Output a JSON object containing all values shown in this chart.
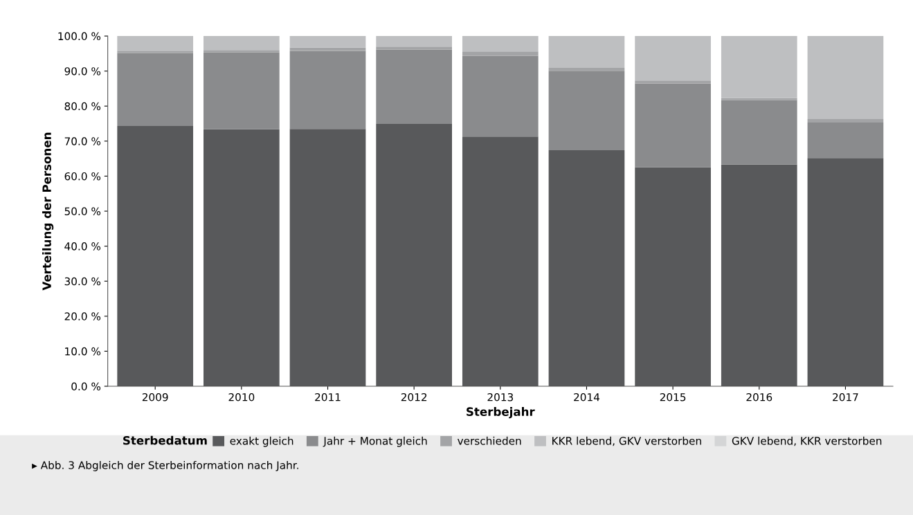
{
  "chart_data": {
    "type": "bar",
    "stacked": true,
    "xlabel": "Sterbejahr",
    "ylabel": "Verteilung der Personen",
    "legend_title": "Sterbedatum",
    "legend": "bottom",
    "grid": false,
    "categories": [
      "2009",
      "2010",
      "2011",
      "2012",
      "2013",
      "2014",
      "2015",
      "2016",
      "2017"
    ],
    "ylim": [
      0,
      100
    ],
    "yticks": [
      {
        "value": 0,
        "label": "0.0 %"
      },
      {
        "value": 10,
        "label": "10.0 %"
      },
      {
        "value": 20,
        "label": "20.0 %"
      },
      {
        "value": 30,
        "label": "30.0 %"
      },
      {
        "value": 40,
        "label": "40.0 %"
      },
      {
        "value": 50,
        "label": "50.0 %"
      },
      {
        "value": 60,
        "label": "60.0 %"
      },
      {
        "value": 70,
        "label": "70.0 %"
      },
      {
        "value": 80,
        "label": "80.0 %"
      },
      {
        "value": 90,
        "label": "90.0 %"
      },
      {
        "value": 100,
        "label": "100.0 %"
      }
    ],
    "series": [
      {
        "name": "exakt gleich",
        "color": "#58595b",
        "values": [
          74.3,
          73.4,
          73.5,
          74.9,
          71.3,
          67.4,
          62.5,
          63.3,
          65.2
        ]
      },
      {
        "name": "Jahr + Monat gleich",
        "color": "#8a8b8d",
        "values": [
          20.8,
          21.9,
          22.2,
          21.2,
          23.1,
          22.7,
          24.0,
          18.4,
          10.1
        ]
      },
      {
        "name": "verschieden",
        "color": "#a3a4a6",
        "values": [
          0.7,
          0.7,
          1.0,
          0.9,
          1.2,
          0.8,
          0.8,
          0.6,
          1.0
        ]
      },
      {
        "name": "KKR lebend, GKV verstorben",
        "color": "#bebfc1",
        "values": [
          4.2,
          4.0,
          3.3,
          3.0,
          4.4,
          9.1,
          12.7,
          17.7,
          23.7
        ]
      },
      {
        "name": "GKV lebend, KKR verstorben",
        "color": "#d4d5d6",
        "values": [
          0,
          0,
          0,
          0,
          0,
          0,
          0,
          0,
          0
        ]
      }
    ],
    "annotations": [
      "▸ Abb. 3 Abgleich der Sterbeinformation nach Jahr."
    ]
  }
}
